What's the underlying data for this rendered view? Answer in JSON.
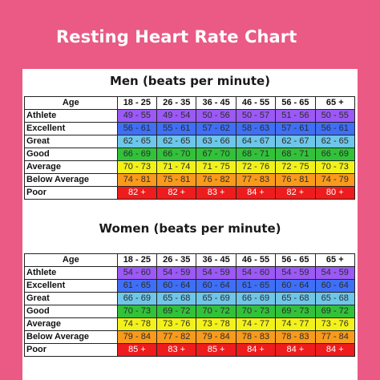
{
  "title": "Resting Heart Rate Chart",
  "header": {
    "corner": "Age",
    "ages": [
      "18 - 25",
      "26 - 35",
      "36 - 45",
      "46 - 55",
      "56 - 65",
      "65 +"
    ]
  },
  "category_colors": {
    "Athlete": "#9b59f5",
    "Excellent": "#3f6ff5",
    "Great": "#6ec6e8",
    "Good": "#32c23a",
    "Average": "#f2f21a",
    "Below Average": "#f99a1c",
    "Poor": "#ee1c1c"
  },
  "sections": [
    {
      "title": "Men (beats per minute)",
      "rows": [
        {
          "label": "Athlete",
          "values": [
            "49 - 55",
            "49 - 54",
            "50 - 56",
            "50 - 57",
            "51 - 56",
            "50 - 55"
          ]
        },
        {
          "label": "Excellent",
          "values": [
            "56 - 61",
            "55 - 61",
            "57 - 62",
            "58 - 63",
            "57 - 61",
            "56 - 61"
          ]
        },
        {
          "label": "Great",
          "values": [
            "62 - 65",
            "62 - 65",
            "63 - 66",
            "64 - 67",
            "62 - 67",
            "62 - 65"
          ]
        },
        {
          "label": "Good",
          "values": [
            "66 - 69",
            "66 - 70",
            "67 - 70",
            "68 - 71",
            "68 - 71",
            "66 - 69"
          ]
        },
        {
          "label": "Average",
          "values": [
            "70 - 73",
            "71 - 74",
            "71 - 75",
            "72 - 76",
            "72 - 75",
            "70 - 73"
          ]
        },
        {
          "label": "Below Average",
          "values": [
            "74 - 81",
            "75 - 81",
            "76 - 82",
            "77 - 83",
            "76 - 81",
            "74 - 79"
          ]
        },
        {
          "label": "Poor",
          "values": [
            "82 +",
            "82 +",
            "83 +",
            "84 +",
            "82 +",
            "80 +"
          ]
        }
      ]
    },
    {
      "title": "Women (beats per minute)",
      "rows": [
        {
          "label": "Athlete",
          "values": [
            "54 - 60",
            "54 - 59",
            "54 - 59",
            "54 - 60",
            "54 - 59",
            "54 - 59"
          ]
        },
        {
          "label": "Excellent",
          "values": [
            "61 - 65",
            "60 - 64",
            "60 - 64",
            "61 - 65",
            "60 - 64",
            "60 - 64"
          ]
        },
        {
          "label": "Great",
          "values": [
            "66 - 69",
            "65 - 68",
            "65 - 69",
            "66 - 69",
            "65 - 68",
            "65 - 68"
          ]
        },
        {
          "label": "Good",
          "values": [
            "70 - 73",
            "69 - 72",
            "70 - 72",
            "70 - 73",
            "69 - 73",
            "69 - 72"
          ]
        },
        {
          "label": "Average",
          "values": [
            "74 - 78",
            "73 - 76",
            "73 - 78",
            "74 - 77",
            "74 - 77",
            "73 - 76"
          ]
        },
        {
          "label": "Below Average",
          "values": [
            "79 - 84",
            "77 - 82",
            "79 - 84",
            "78 - 83",
            "78 - 83",
            "77 - 84"
          ]
        },
        {
          "label": "Poor",
          "values": [
            "85 +",
            "83 +",
            "85 +",
            "84 +",
            "84 +",
            "84 +"
          ]
        }
      ]
    }
  ]
}
